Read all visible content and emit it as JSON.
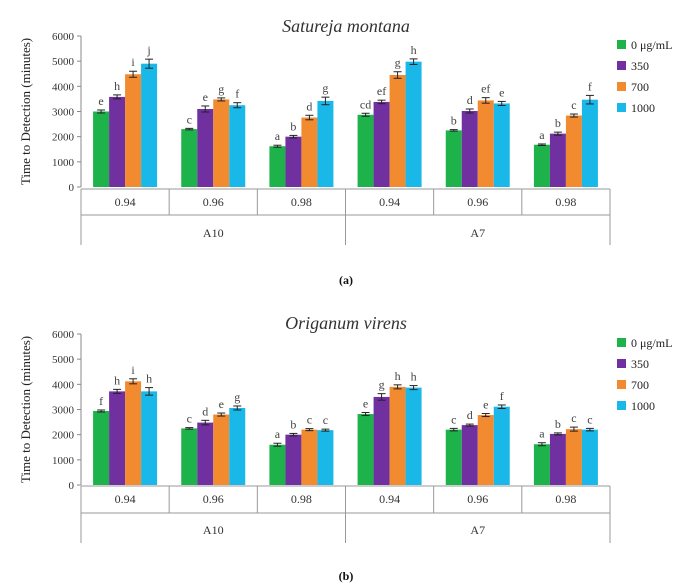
{
  "chart_data": [
    {
      "type": "bar",
      "panel_label": "(a)",
      "title": "Satureja montana",
      "ylabel": "Time to Detection (minutes)",
      "ylim": [
        0,
        6000
      ],
      "yticks": [
        "0",
        "1000",
        "2000",
        "3000",
        "4000",
        "5000",
        "6000"
      ],
      "groups": [
        {
          "label": "A10",
          "categories": [
            "0.94",
            "0.96",
            "0.98"
          ]
        },
        {
          "label": "A7",
          "categories": [
            "0.94",
            "0.96",
            "0.98"
          ]
        }
      ],
      "categories": [
        "0.94",
        "0.96",
        "0.98",
        "0.94",
        "0.96",
        "0.98"
      ],
      "series": [
        {
          "name": "0 μg/mL",
          "color": "#1db34a",
          "values": [
            3000,
            2300,
            1620,
            2870,
            2250,
            1680
          ],
          "errors": [
            60,
            30,
            40,
            60,
            30,
            30
          ],
          "letters": [
            "e",
            "c",
            "a",
            "cd",
            "b",
            "a"
          ]
        },
        {
          "name": "350",
          "color": "#7030a0",
          "values": [
            3580,
            3100,
            2000,
            3380,
            3020,
            2120
          ],
          "errors": [
            80,
            120,
            50,
            70,
            80,
            60
          ],
          "letters": [
            "h",
            "e",
            "b",
            "ef",
            "d",
            "b"
          ]
        },
        {
          "name": "700",
          "color": "#f28a30",
          "values": [
            4480,
            3480,
            2760,
            4450,
            3440,
            2840
          ],
          "errors": [
            120,
            60,
            90,
            130,
            110,
            60
          ],
          "letters": [
            "i",
            "g",
            "d",
            "g",
            "ef",
            "c"
          ]
        },
        {
          "name": "1000",
          "color": "#1ab8e8",
          "values": [
            4900,
            3250,
            3420,
            4980,
            3320,
            3470
          ],
          "errors": [
            180,
            100,
            150,
            110,
            80,
            170
          ],
          "letters": [
            "j",
            "f",
            "g",
            "h",
            "e",
            "f"
          ]
        }
      ]
    },
    {
      "type": "bar",
      "panel_label": "(b)",
      "title": "Origanum virens",
      "ylabel": "Time to Detection (minutes)",
      "ylim": [
        0,
        6000
      ],
      "yticks": [
        "0",
        "1000",
        "2000",
        "3000",
        "4000",
        "5000",
        "6000"
      ],
      "groups": [
        {
          "label": "A10",
          "categories": [
            "0.94",
            "0.96",
            "0.98"
          ]
        },
        {
          "label": "A7",
          "categories": [
            "0.94",
            "0.96",
            "0.98"
          ]
        }
      ],
      "categories": [
        "0.94",
        "0.96",
        "0.98",
        "0.94",
        "0.96",
        "0.98"
      ],
      "series": [
        {
          "name": "0 μg/mL",
          "color": "#1db34a",
          "values": [
            2940,
            2250,
            1600,
            2820,
            2200,
            1620
          ],
          "errors": [
            40,
            30,
            60,
            60,
            50,
            60
          ],
          "letters": [
            "f",
            "c",
            "a",
            "e",
            "c",
            "a"
          ]
        },
        {
          "name": "350",
          "color": "#7030a0",
          "values": [
            3720,
            2480,
            2000,
            3500,
            2380,
            2030
          ],
          "errors": [
            80,
            90,
            50,
            130,
            40,
            40
          ],
          "letters": [
            "h",
            "d",
            "b",
            "g",
            "d",
            "b"
          ]
        },
        {
          "name": "700",
          "color": "#f28a30",
          "values": [
            4120,
            2800,
            2200,
            3900,
            2780,
            2220
          ],
          "errors": [
            100,
            60,
            40,
            80,
            60,
            80
          ],
          "letters": [
            "i",
            "e",
            "c",
            "h",
            "e",
            "c"
          ]
        },
        {
          "name": "1000",
          "color": "#1ab8e8",
          "values": [
            3720,
            3060,
            2180,
            3870,
            3110,
            2200
          ],
          "errors": [
            150,
            80,
            40,
            80,
            70,
            50
          ],
          "letters": [
            "h",
            "g",
            "c",
            "h",
            "f",
            "c"
          ]
        }
      ]
    }
  ]
}
